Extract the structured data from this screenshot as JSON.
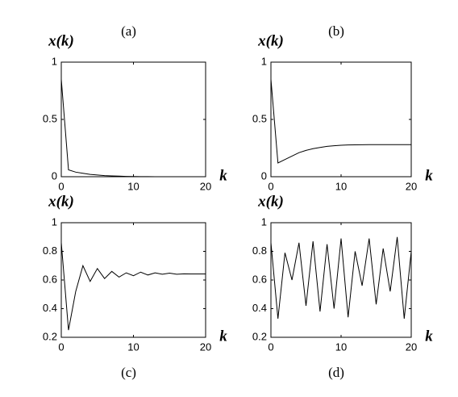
{
  "chart_data": [
    {
      "type": "line",
      "title": "(a)",
      "y_label": "x(k)",
      "x_label": "k",
      "x": [
        0,
        1,
        2,
        3,
        4,
        5,
        6,
        7,
        8,
        9,
        10,
        11,
        12,
        13,
        14,
        15,
        16,
        17,
        18,
        19,
        20
      ],
      "values": [
        0.85,
        0.06,
        0.04,
        0.03,
        0.02,
        0.015,
        0.01,
        0.007,
        0.005,
        0.003,
        0.002,
        0.001,
        0.001,
        0,
        0,
        0,
        0,
        0,
        0,
        0,
        0
      ],
      "color": "#000000",
      "xlim": [
        0,
        20
      ],
      "xticks": [
        0,
        10,
        20
      ],
      "ylim": [
        0,
        1
      ],
      "yticks": [
        0,
        0.5,
        1
      ]
    },
    {
      "type": "line",
      "title": "(b)",
      "y_label": "x(k)",
      "x_label": "k",
      "x": [
        0,
        1,
        2,
        3,
        4,
        5,
        6,
        7,
        8,
        9,
        10,
        11,
        12,
        13,
        14,
        15,
        16,
        17,
        18,
        19,
        20
      ],
      "values": [
        0.85,
        0.12,
        0.15,
        0.18,
        0.21,
        0.23,
        0.245,
        0.255,
        0.265,
        0.27,
        0.275,
        0.277,
        0.278,
        0.279,
        0.28,
        0.28,
        0.28,
        0.28,
        0.28,
        0.28,
        0.28
      ],
      "color": "#000000",
      "xlim": [
        0,
        20
      ],
      "xticks": [
        0,
        10,
        20
      ],
      "ylim": [
        0,
        1
      ],
      "yticks": [
        0,
        0.5,
        1
      ]
    },
    {
      "type": "line",
      "title": "(c)",
      "y_label": "x(k)",
      "x_label": "k",
      "x": [
        0,
        1,
        2,
        3,
        4,
        5,
        6,
        7,
        8,
        9,
        10,
        11,
        12,
        13,
        14,
        15,
        16,
        17,
        18,
        19,
        20
      ],
      "values": [
        0.86,
        0.25,
        0.52,
        0.7,
        0.59,
        0.68,
        0.61,
        0.66,
        0.62,
        0.65,
        0.63,
        0.655,
        0.635,
        0.65,
        0.64,
        0.648,
        0.64,
        0.643,
        0.642,
        0.642,
        0.642
      ],
      "color": "#000000",
      "xlim": [
        0,
        20
      ],
      "xticks": [
        0,
        10,
        20
      ],
      "ylim": [
        0.2,
        1
      ],
      "yticks": [
        0.2,
        0.4,
        0.6,
        0.8,
        1
      ]
    },
    {
      "type": "line",
      "title": "(d)",
      "y_label": "x(k)",
      "x_label": "k",
      "x": [
        0,
        1,
        2,
        3,
        4,
        5,
        6,
        7,
        8,
        9,
        10,
        11,
        12,
        13,
        14,
        15,
        16,
        17,
        18,
        19,
        20
      ],
      "values": [
        0.86,
        0.33,
        0.79,
        0.6,
        0.86,
        0.42,
        0.87,
        0.38,
        0.85,
        0.4,
        0.89,
        0.34,
        0.8,
        0.56,
        0.89,
        0.43,
        0.82,
        0.52,
        0.9,
        0.33,
        0.8
      ],
      "color": "#000000",
      "xlim": [
        0,
        20
      ],
      "xticks": [
        0,
        10,
        20
      ],
      "ylim": [
        0.2,
        1
      ],
      "yticks": [
        0.2,
        0.4,
        0.6,
        0.8,
        1
      ]
    }
  ]
}
